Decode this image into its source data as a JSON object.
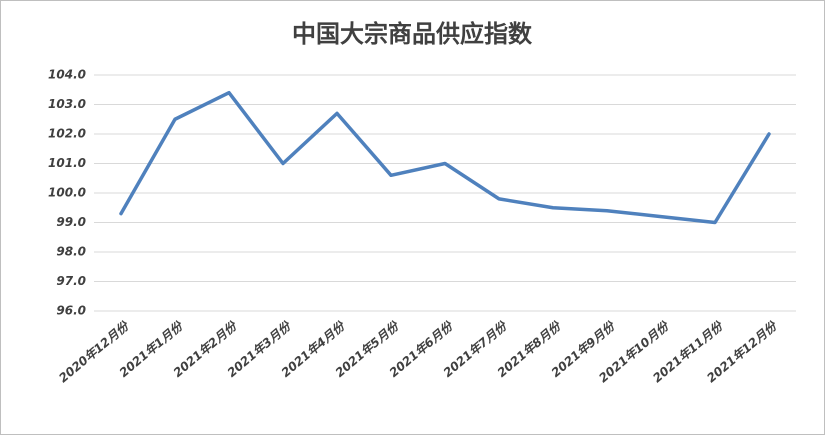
{
  "chart_data": {
    "type": "line",
    "title": "中国大宗商品供应指数",
    "categories": [
      "2020年12月份",
      "2021年1月份",
      "2021年2月份",
      "2021年3月份",
      "2021年4月份",
      "2021年5月份",
      "2021年6月份",
      "2021年7月份",
      "2021年8月份",
      "2021年9月份",
      "2021年10月份",
      "2021年11月份",
      "2021年12月份"
    ],
    "values": [
      99.3,
      102.5,
      103.4,
      101.0,
      102.7,
      100.6,
      101.0,
      99.8,
      99.5,
      99.4,
      99.2,
      99.0,
      102.0
    ],
    "color": "#4f81bd",
    "ylim": [
      96,
      104
    ],
    "yticks": [
      {
        "value": 96,
        "label": "96.0"
      },
      {
        "value": 97,
        "label": "97.0"
      },
      {
        "value": 98,
        "label": "98.0"
      },
      {
        "value": 99,
        "label": "99.0"
      },
      {
        "value": 100,
        "label": "100.0"
      },
      {
        "value": 101,
        "label": "101.0"
      },
      {
        "value": 102,
        "label": "102.0"
      },
      {
        "value": 103,
        "label": "103.0"
      },
      {
        "value": 104,
        "label": "104.0"
      }
    ],
    "grid": true
  }
}
